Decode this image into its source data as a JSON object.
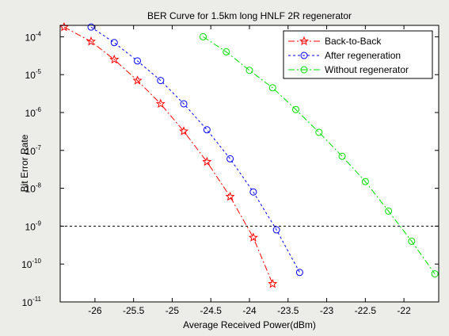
{
  "chart_data": {
    "type": "line",
    "title": "BER Curve for 1.5km long HNLF 2R regenerator",
    "xlabel": "Average Received Power(dBm)",
    "ylabel": "Bit Error Rate",
    "xlim": [
      -26.45,
      -21.55
    ],
    "ylim": [
      1e-11,
      0.0002
    ],
    "yscale": "log",
    "grid": false,
    "legend_position": "top-right",
    "x_ticks": [
      -26,
      -25.5,
      -25,
      -24.5,
      -24,
      -23.5,
      -23,
      -22.5,
      -22
    ],
    "x_tick_labels": [
      "-26",
      "-25.5",
      "-25",
      "-24.5",
      "-24",
      "-23.5",
      "-23",
      "-22.5",
      "-22"
    ],
    "y_ticks": [
      {
        "value": 0.0001,
        "base": "10",
        "exp": "-4"
      },
      {
        "value": 1e-05,
        "base": "10",
        "exp": "-5"
      },
      {
        "value": 1e-06,
        "base": "10",
        "exp": "-6"
      },
      {
        "value": 1e-07,
        "base": "10",
        "exp": "-7"
      },
      {
        "value": 1e-08,
        "base": "10",
        "exp": "-8"
      },
      {
        "value": 1e-09,
        "base": "10",
        "exp": "-9"
      },
      {
        "value": 1e-10,
        "base": "10",
        "exp": "-10"
      },
      {
        "value": 1e-11,
        "base": "10",
        "exp": "-11"
      }
    ],
    "reference_line": {
      "y": 1e-09,
      "style": "dashed",
      "color": "#000000"
    },
    "series": [
      {
        "name": "Back-to-Back",
        "color": "#ff0000",
        "marker": "star",
        "line_style": "dash-dot",
        "x": [
          -26.4,
          -26.05,
          -25.75,
          -25.45,
          -25.15,
          -24.85,
          -24.55,
          -24.25,
          -23.95,
          -23.7
        ],
        "y": [
          0.00018,
          7.5e-05,
          2.5e-05,
          7e-06,
          1.7e-06,
          3.2e-07,
          5e-08,
          6e-09,
          5e-10,
          3e-11
        ]
      },
      {
        "name": "After regeneration",
        "color": "#0000ff",
        "marker": "circle",
        "line_style": "dotted",
        "x": [
          -26.05,
          -25.75,
          -25.45,
          -25.15,
          -24.85,
          -24.55,
          -24.25,
          -23.95,
          -23.65,
          -23.35
        ],
        "y": [
          0.00018,
          7e-05,
          2.3e-05,
          7e-06,
          1.7e-06,
          3.5e-07,
          6e-08,
          8e-09,
          8e-10,
          6e-11
        ]
      },
      {
        "name": "Without regenerator",
        "color": "#00dd00",
        "marker": "circle",
        "line_style": "dash-dot",
        "x": [
          -24.6,
          -24.3,
          -24.0,
          -23.7,
          -23.4,
          -23.1,
          -22.8,
          -22.5,
          -22.2,
          -21.9,
          -21.6
        ],
        "y": [
          0.0001,
          4e-05,
          1.3e-05,
          4.5e-06,
          1.2e-06,
          3e-07,
          7e-08,
          1.5e-08,
          2.5e-09,
          4e-10,
          5.5e-11
        ]
      }
    ]
  }
}
